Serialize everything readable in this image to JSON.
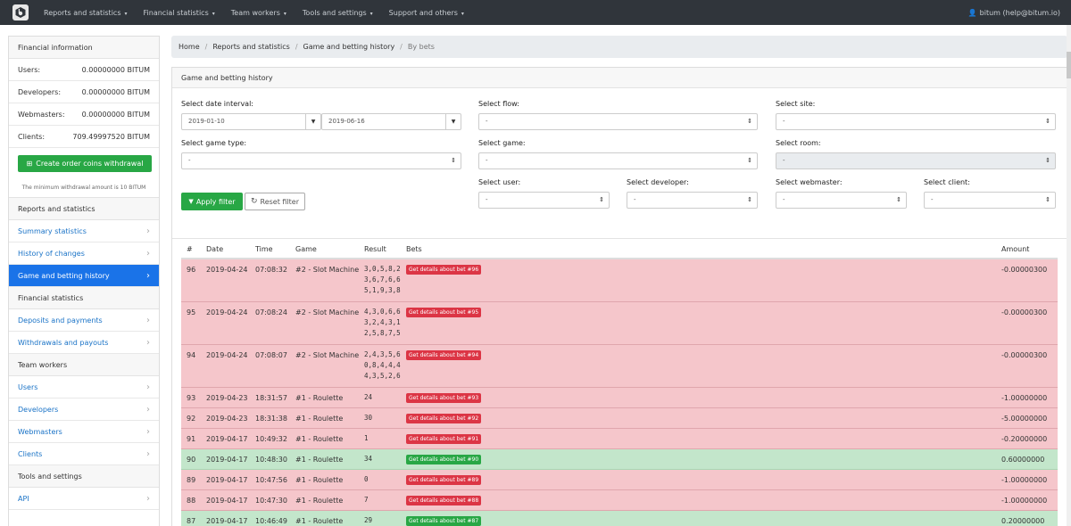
{
  "navbar": {
    "items": [
      {
        "label": "Reports and statistics",
        "caret": "▾"
      },
      {
        "label": "Financial statistics",
        "caret": "▾"
      },
      {
        "label": "Team workers",
        "caret": "▾"
      },
      {
        "label": "Tools and settings",
        "caret": "▾"
      },
      {
        "label": "Support and others",
        "caret": "▾"
      }
    ],
    "user": "bitum (help@bitum.io)",
    "user_icon": "user-icon"
  },
  "sidebar": {
    "financial_title": "Financial information",
    "balances": [
      {
        "label": "Users:",
        "value": "0.00000000 BITUM"
      },
      {
        "label": "Developers:",
        "value": "0.00000000 BITUM"
      },
      {
        "label": "Webmasters:",
        "value": "0.00000000 BITUM"
      },
      {
        "label": "Clients:",
        "value": "709.49997520 BITUM"
      }
    ],
    "withdraw_button": "Create order coins withdrawal",
    "min_note": "The minimum withdrawal amount is 10 BITUM",
    "sections": [
      {
        "title": "Reports and statistics",
        "links": [
          {
            "label": "Summary statistics",
            "active": false
          },
          {
            "label": "History of changes",
            "active": false
          },
          {
            "label": "Game and betting history",
            "active": true
          }
        ]
      },
      {
        "title": "Financial statistics",
        "links": [
          {
            "label": "Deposits and payments",
            "active": false
          },
          {
            "label": "Withdrawals and payouts",
            "active": false
          }
        ]
      },
      {
        "title": "Team workers",
        "links": [
          {
            "label": "Users",
            "active": false
          },
          {
            "label": "Developers",
            "active": false
          },
          {
            "label": "Webmasters",
            "active": false
          },
          {
            "label": "Clients",
            "active": false
          }
        ]
      },
      {
        "title": "Tools and settings",
        "links": [
          {
            "label": "API",
            "active": false
          }
        ]
      }
    ]
  },
  "breadcrumb": [
    "Home",
    "Reports and statistics",
    "Game and betting history",
    "By bets"
  ],
  "card": {
    "title": "Game and betting history",
    "filters": {
      "date_label": "Select date interval:",
      "date_from": "2019-01-10",
      "date_to": "2019-06-16",
      "flow_label": "Select flow:",
      "flow_value": "-",
      "site_label": "Select site:",
      "site_value": "-",
      "game_type_label": "Select game type:",
      "game_type_value": "-",
      "game_label": "Select game:",
      "game_value": "-",
      "room_label": "Select room:",
      "room_value": "-",
      "user_label": "Select user:",
      "user_value": "-",
      "developer_label": "Select developer:",
      "developer_value": "-",
      "webmaster_label": "Select webmaster:",
      "webmaster_value": "-",
      "client_label": "Select client:",
      "client_value": "-"
    },
    "apply_button": "Apply filter",
    "reset_button": "Reset filter"
  },
  "table": {
    "columns": [
      "#",
      "Date",
      "Time",
      "Game",
      "Result",
      "Bets",
      "Amount"
    ],
    "rows": [
      {
        "id": "96",
        "date": "2019-04-24",
        "time": "07:08:32",
        "game": "#2 - Slot Machine",
        "result": [
          "3,0,5,8,2",
          "3,6,7,6,6",
          "5,1,9,3,8"
        ],
        "bet": "Get details about bet #96",
        "amount": "-0.00000300",
        "status": "loss"
      },
      {
        "id": "95",
        "date": "2019-04-24",
        "time": "07:08:24",
        "game": "#2 - Slot Machine",
        "result": [
          "4,3,0,6,6",
          "3,2,4,3,1",
          "2,5,8,7,5"
        ],
        "bet": "Get details about bet #95",
        "amount": "-0.00000300",
        "status": "loss"
      },
      {
        "id": "94",
        "date": "2019-04-24",
        "time": "07:08:07",
        "game": "#2 - Slot Machine",
        "result": [
          "2,4,3,5,6",
          "0,8,4,4,4",
          "4,3,5,2,6"
        ],
        "bet": "Get details about bet #94",
        "amount": "-0.00000300",
        "status": "loss"
      },
      {
        "id": "93",
        "date": "2019-04-23",
        "time": "18:31:57",
        "game": "#1 - Roulette",
        "result": [
          "24"
        ],
        "bet": "Get details about bet #93",
        "amount": "-1.00000000",
        "status": "loss"
      },
      {
        "id": "92",
        "date": "2019-04-23",
        "time": "18:31:38",
        "game": "#1 - Roulette",
        "result": [
          "30"
        ],
        "bet": "Get details about bet #92",
        "amount": "-5.00000000",
        "status": "loss"
      },
      {
        "id": "91",
        "date": "2019-04-17",
        "time": "10:49:32",
        "game": "#1 - Roulette",
        "result": [
          "1"
        ],
        "bet": "Get details about bet #91",
        "amount": "-0.20000000",
        "status": "loss"
      },
      {
        "id": "90",
        "date": "2019-04-17",
        "time": "10:48:30",
        "game": "#1 - Roulette",
        "result": [
          "34"
        ],
        "bet": "Get details about bet #90",
        "amount": "0.60000000",
        "status": "win"
      },
      {
        "id": "89",
        "date": "2019-04-17",
        "time": "10:47:56",
        "game": "#1 - Roulette",
        "result": [
          "0"
        ],
        "bet": "Get details about bet #89",
        "amount": "-1.00000000",
        "status": "loss"
      },
      {
        "id": "88",
        "date": "2019-04-17",
        "time": "10:47:30",
        "game": "#1 - Roulette",
        "result": [
          "7"
        ],
        "bet": "Get details about bet #88",
        "amount": "-1.00000000",
        "status": "loss"
      },
      {
        "id": "87",
        "date": "2019-04-17",
        "time": "10:46:49",
        "game": "#1 - Roulette",
        "result": [
          "29"
        ],
        "bet": "Get details about bet #87",
        "amount": "0.20000000",
        "status": "win"
      }
    ]
  },
  "colors": {
    "navbar": "#30353b",
    "active": "#1a73e8",
    "success": "#28a745",
    "danger": "#dc3545",
    "loss_row": "#f5c6cb",
    "win_row": "#c3e6cb"
  }
}
